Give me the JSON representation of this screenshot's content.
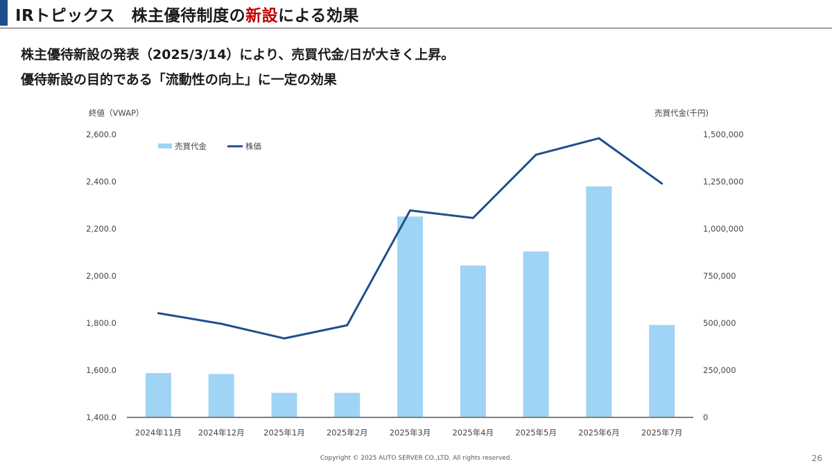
{
  "header": {
    "title_prefix": "IRトピックス　株主優待制度の",
    "title_highlight": "新設",
    "title_suffix": "による効果",
    "accent_color": "#1f4e8c",
    "highlight_color": "#c00000"
  },
  "headline": {
    "line1": "株主優待新設の発表（2025/3/14）により、売買代金/日が大きく上昇。",
    "line2": "優待新設の目的である「流動性の向上」に一定の効果"
  },
  "chart_data": {
    "type": "bar",
    "categories": [
      "2024年11月",
      "2024年12月",
      "2025年1月",
      "2025年2月",
      "2025年3月",
      "2025年4月",
      "2025年5月",
      "2025年6月",
      "2025年7月"
    ],
    "series": [
      {
        "name": "売買代金",
        "type": "bar",
        "axis": "right",
        "color": "#9fd4f5",
        "values": [
          235000,
          230000,
          130000,
          130000,
          1065000,
          805000,
          880000,
          1225000,
          490000
        ]
      },
      {
        "name": "株価",
        "type": "line",
        "axis": "left",
        "color": "#1f4e8c",
        "values": [
          1842,
          1797,
          1735,
          1791,
          2278,
          2246,
          2514,
          2584,
          2392
        ]
      }
    ],
    "left_axis": {
      "label": "終値（VWAP）",
      "min": 1400,
      "max": 2600,
      "ticks": [
        "1,400.0",
        "1,600.0",
        "1,800.0",
        "2,000.0",
        "2,200.0",
        "2,400.0",
        "2,600.0"
      ]
    },
    "right_axis": {
      "label": "売買代金(千円)",
      "min": 0,
      "max": 1500000,
      "ticks": [
        "0",
        "250,000",
        "500,000",
        "750,000",
        "1,000,000",
        "1,250,000",
        "1,500,000"
      ]
    },
    "legend_position": "top-left",
    "grid": false
  },
  "footer": {
    "copyright": "Copyright © 2025 AUTO SERVER CO.,LTD.  All rights reserved.",
    "page": "26"
  }
}
